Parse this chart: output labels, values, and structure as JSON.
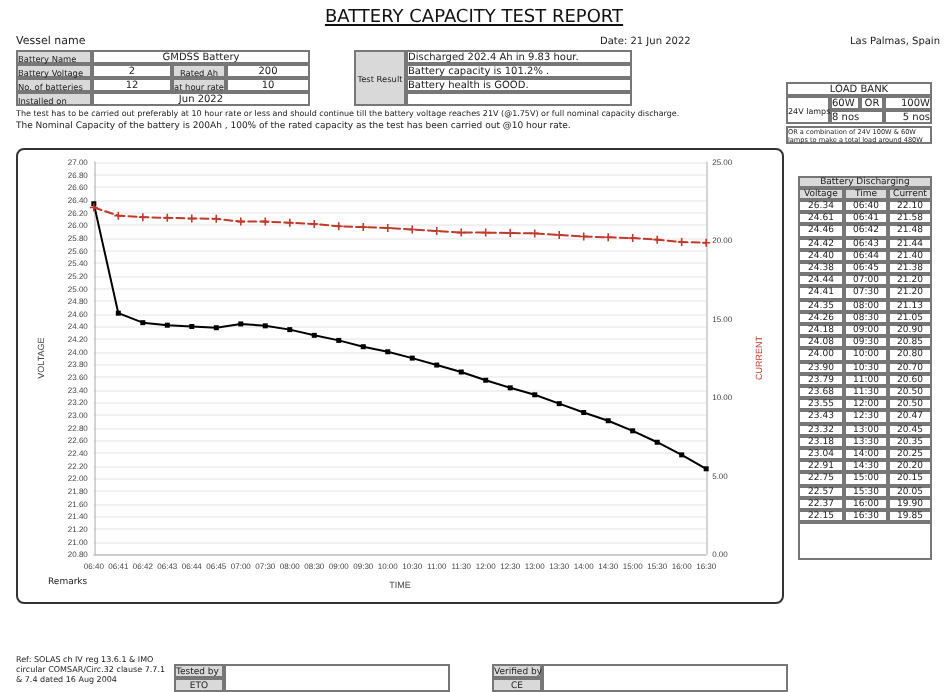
{
  "chart_data": {
    "type": "line",
    "title": "BATTERY CAPACITY TEST REPORT",
    "xlabel": "TIME",
    "ylabel": "VOLTAGE",
    "y2label": "CURRENT",
    "categories": [
      "06:40",
      "06:41",
      "06:42",
      "06:43",
      "06:44",
      "06:45",
      "07:00",
      "07:30",
      "08:00",
      "08:30",
      "09:00",
      "09:30",
      "10:00",
      "10:30",
      "11:00",
      "11:30",
      "12:00",
      "12:30",
      "13:00",
      "13:30",
      "14:00",
      "14:30",
      "15:00",
      "15:30",
      "16:00",
      "16:30"
    ],
    "series": [
      {
        "color": "#000000",
        "marker": "square",
        "line_style": "solid",
        "values": [
          26.34,
          24.61,
          24.46,
          24.42,
          24.4,
          24.38,
          24.44,
          24.41,
          24.35,
          24.26,
          24.18,
          24.08,
          24.0,
          23.9,
          23.79,
          23.68,
          23.55,
          23.43,
          23.32,
          23.18,
          23.04,
          22.91,
          22.75,
          22.57,
          22.37,
          22.15
        ]
      },
      {
        "color": "#c0392b",
        "marker": "cross",
        "line_style": "dashed",
        "axis": "y2",
        "values": [
          22.1,
          21.58,
          21.48,
          21.44,
          21.4,
          21.38,
          21.2,
          21.2,
          21.13,
          21.05,
          20.9,
          20.85,
          20.8,
          20.7,
          20.6,
          20.5,
          20.5,
          20.47,
          20.45,
          20.35,
          20.25,
          20.2,
          20.15,
          20.05,
          19.9,
          19.85
        ]
      }
    ],
    "ylim": [
      20.8,
      27
    ],
    "yticks": [
      {
        "value": 20.8,
        "label": "20.80"
      },
      {
        "value": 21,
        "label": "21.00"
      },
      {
        "value": 21.2,
        "label": "21.20"
      },
      {
        "value": 21.4,
        "label": "21.40"
      },
      {
        "value": 21.6,
        "label": "21.60"
      },
      {
        "value": 21.8,
        "label": "21.80"
      },
      {
        "value": 22,
        "label": "22.00"
      },
      {
        "value": 22.2,
        "label": "22.20"
      },
      {
        "value": 22.4,
        "label": "22.40"
      },
      {
        "value": 22.6,
        "label": "22.60"
      },
      {
        "value": 22.8,
        "label": "22.80"
      },
      {
        "value": 23,
        "label": "23.00"
      },
      {
        "value": 23.2,
        "label": "23.20"
      },
      {
        "value": 23.4,
        "label": "23.40"
      },
      {
        "value": 23.6,
        "label": "23.60"
      },
      {
        "value": 23.8,
        "label": "23.80"
      },
      {
        "value": 24,
        "label": "24.00"
      },
      {
        "value": 24.2,
        "label": "24.20"
      },
      {
        "value": 24.4,
        "label": "24.40"
      },
      {
        "value": 24.6,
        "label": "24.60"
      },
      {
        "value": 24.8,
        "label": "24.80"
      },
      {
        "value": 25,
        "label": "25.00"
      },
      {
        "value": 25.2,
        "label": "25.20"
      },
      {
        "value": 25.4,
        "label": "25.40"
      },
      {
        "value": 25.6,
        "label": "25.60"
      },
      {
        "value": 25.8,
        "label": "25.80"
      },
      {
        "value": 26,
        "label": "26.00"
      },
      {
        "value": 26.2,
        "label": "26.20"
      },
      {
        "value": 26.4,
        "label": "26.40"
      },
      {
        "value": 26.6,
        "label": "26.60"
      },
      {
        "value": 26.8,
        "label": "26.80"
      },
      {
        "value": 27,
        "label": "27.00"
      }
    ],
    "y2lim": [
      0,
      25
    ],
    "y2ticks": [
      {
        "value": 0,
        "label": "0.00"
      },
      {
        "value": 5,
        "label": "5.00"
      },
      {
        "value": 10,
        "label": "10.00"
      },
      {
        "value": 15,
        "label": "15.00"
      },
      {
        "value": 20,
        "label": "20.00"
      },
      {
        "value": 25,
        "label": "25.00"
      }
    ],
    "grid": "y",
    "annotations": [
      "Vessel name",
      "Date: 21 Jun 2022",
      "Las Palmas, Spain",
      "Battery Name",
      "GMDSS Battery",
      "Battery Voltage",
      "2",
      "Rated Ah",
      "200",
      "No. of batteries",
      "12",
      "at hour rate",
      "10",
      "Installed on",
      "Jun 2022",
      "Test Result",
      "Discharged 202.4 Ah in 9.83 hour.",
      "Battery capacity is 101.2% .",
      "Battery health is GOOD.",
      "The test has to be carried out preferably at 10 hour rate or less and should continue till the battery voltage reaches 21V (@1.75V) or full nominal capacity discharge.",
      "The Nominal Capacity of the battery is 200Ah , 100% of the rated capacity as the test has been carried out @10 hour rate.",
      "LOAD BANK",
      "24V lamps",
      "60W",
      "OR",
      "100W",
      "8 nos",
      "5 nos",
      "OR  a combination of 24V 100W & 60W lamps to make a total load around 480W",
      "Battery Discharging",
      "Voltage",
      "Time",
      "Current",
      "Remarks",
      "Ref: SOLAS ch IV reg 13.6.1 & IMO circular COMSAR/Circ.32 clause 7.7.1 & 7.4 dated 16 Aug 2004",
      "Tested by",
      "ETO",
      "Verified by",
      "CE",
      "26.34",
      "06:40",
      "22.10",
      "24.61",
      "06:41",
      "21.58",
      "24.46",
      "06:42",
      "21.48",
      "24.42",
      "06:43",
      "21.44",
      "24.40",
      "06:44",
      "21.40",
      "24.38",
      "06:45",
      "21.38",
      "24.44",
      "07:00",
      "21.20",
      "24.41",
      "07:30",
      "21.20",
      "24.35",
      "08:00",
      "21.13",
      "24.26",
      "08:30",
      "21.05",
      "24.18",
      "09:00",
      "20.90",
      "24.08",
      "09:30",
      "20.85",
      "24.00",
      "10:00",
      "20.80",
      "23.90",
      "10:30",
      "20.70",
      "23.79",
      "11:00",
      "20.60",
      "23.68",
      "11:30",
      "20.50",
      "23.55",
      "12:00",
      "20.50",
      "23.43",
      "12:30",
      "20.47",
      "23.32",
      "13:00",
      "20.45",
      "23.18",
      "13:30",
      "20.35",
      "23.04",
      "14:00",
      "20.25",
      "22.91",
      "14:30",
      "20.20",
      "22.75",
      "15:00",
      "20.15",
      "22.57",
      "15:30",
      "20.05",
      "22.37",
      "16:00",
      "19.90",
      "22.15",
      "16:30",
      "19.85"
    ]
  }
}
